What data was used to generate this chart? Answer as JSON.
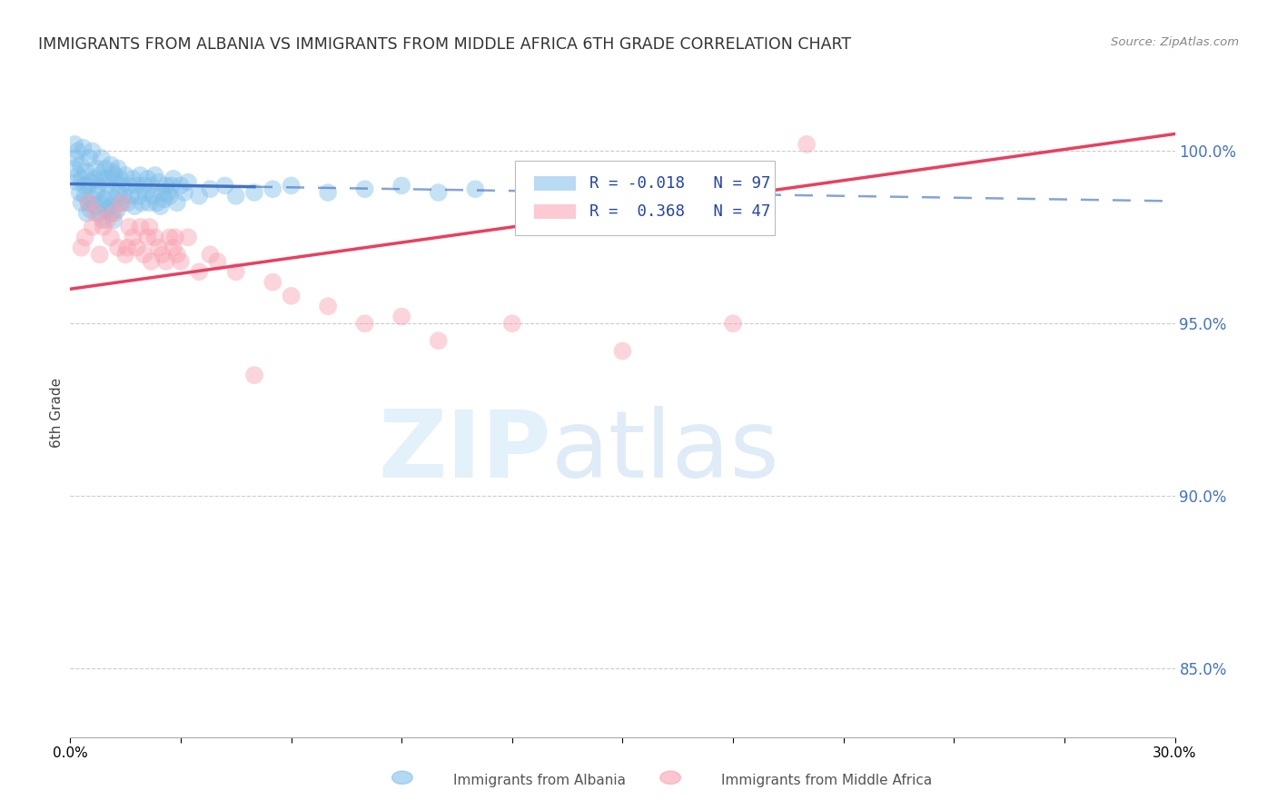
{
  "title": "IMMIGRANTS FROM ALBANIA VS IMMIGRANTS FROM MIDDLE AFRICA 6TH GRADE CORRELATION CHART",
  "source": "Source: ZipAtlas.com",
  "ylabel": "6th Grade",
  "xmin": 0.0,
  "xmax": 30.0,
  "ymin": 83.0,
  "ymax": 101.8,
  "yticks": [
    85.0,
    90.0,
    95.0,
    100.0
  ],
  "legend_albania_r": "-0.018",
  "legend_albania_n": "97",
  "legend_africa_r": " 0.368",
  "legend_africa_n": "47",
  "color_albania": "#7fbfea",
  "color_africa": "#f9a0b0",
  "color_trendline_albania": "#4472C4",
  "color_trendline_africa": "#e84060",
  "albania_x": [
    0.1,
    0.12,
    0.15,
    0.18,
    0.2,
    0.22,
    0.25,
    0.28,
    0.3,
    0.32,
    0.35,
    0.38,
    0.4,
    0.42,
    0.45,
    0.48,
    0.5,
    0.52,
    0.55,
    0.58,
    0.6,
    0.62,
    0.65,
    0.68,
    0.7,
    0.72,
    0.75,
    0.78,
    0.8,
    0.82,
    0.85,
    0.88,
    0.9,
    0.92,
    0.95,
    0.98,
    1.0,
    1.02,
    1.05,
    1.08,
    1.1,
    1.12,
    1.15,
    1.18,
    1.2,
    1.22,
    1.25,
    1.28,
    1.3,
    1.32,
    1.35,
    1.38,
    1.4,
    1.45,
    1.5,
    1.55,
    1.6,
    1.65,
    1.7,
    1.75,
    1.8,
    1.85,
    1.9,
    1.95,
    2.0,
    2.05,
    2.1,
    2.15,
    2.2,
    2.25,
    2.3,
    2.35,
    2.4,
    2.5,
    2.6,
    2.7,
    2.8,
    2.9,
    3.0,
    3.1,
    3.2,
    3.5,
    3.8,
    4.2,
    4.5,
    5.0,
    5.5,
    6.0,
    7.0,
    8.0,
    9.0,
    10.0,
    11.0,
    2.45,
    2.55,
    2.65,
    2.75
  ],
  "albania_y": [
    99.5,
    100.2,
    99.8,
    99.1,
    100.0,
    99.3,
    98.8,
    99.6,
    98.5,
    99.2,
    100.1,
    99.0,
    98.7,
    99.4,
    98.2,
    99.0,
    98.5,
    99.8,
    98.3,
    99.1,
    100.0,
    98.6,
    99.2,
    98.4,
    99.5,
    98.8,
    99.0,
    98.2,
    99.3,
    98.5,
    99.8,
    98.0,
    99.2,
    98.6,
    99.5,
    98.3,
    99.0,
    98.7,
    99.2,
    98.4,
    99.6,
    98.2,
    99.4,
    98.0,
    99.3,
    98.6,
    99.1,
    98.3,
    99.5,
    98.8,
    99.2,
    98.5,
    99.0,
    98.7,
    99.3,
    98.5,
    99.0,
    98.7,
    99.2,
    98.4,
    99.0,
    98.7,
    99.3,
    98.5,
    99.0,
    98.8,
    99.2,
    98.5,
    99.0,
    98.7,
    99.3,
    98.5,
    99.1,
    98.8,
    99.0,
    98.7,
    99.2,
    98.5,
    99.0,
    98.8,
    99.1,
    98.7,
    98.9,
    99.0,
    98.7,
    98.8,
    98.9,
    99.0,
    98.8,
    98.9,
    99.0,
    98.8,
    98.9,
    98.4,
    98.6,
    98.8,
    99.0
  ],
  "africa_x": [
    0.3,
    0.5,
    0.6,
    0.7,
    0.8,
    0.9,
    1.0,
    1.1,
    1.2,
    1.3,
    1.4,
    1.5,
    1.6,
    1.7,
    1.8,
    1.9,
    2.0,
    2.1,
    2.2,
    2.3,
    2.4,
    2.5,
    2.6,
    2.7,
    2.8,
    2.9,
    3.0,
    3.2,
    3.5,
    3.8,
    4.0,
    4.5,
    5.0,
    5.5,
    6.0,
    7.0,
    8.0,
    9.0,
    10.0,
    12.0,
    15.0,
    18.0,
    20.0,
    0.4,
    1.55,
    2.15,
    2.85
  ],
  "africa_y": [
    97.2,
    98.5,
    97.8,
    98.2,
    97.0,
    97.8,
    98.0,
    97.5,
    98.2,
    97.2,
    98.5,
    97.0,
    97.8,
    97.5,
    97.2,
    97.8,
    97.0,
    97.5,
    96.8,
    97.5,
    97.2,
    97.0,
    96.8,
    97.5,
    97.2,
    97.0,
    96.8,
    97.5,
    96.5,
    97.0,
    96.8,
    96.5,
    93.5,
    96.2,
    95.8,
    95.5,
    95.0,
    95.2,
    94.5,
    95.0,
    94.2,
    95.0,
    100.2,
    97.5,
    97.2,
    97.8,
    97.5
  ],
  "albania_trend_x": [
    0.0,
    30.0
  ],
  "albania_trend_y": [
    99.05,
    98.55
  ],
  "africa_trend_x": [
    0.0,
    30.0
  ],
  "africa_trend_y": [
    96.0,
    100.5
  ],
  "albania_solid_end": 5.0
}
